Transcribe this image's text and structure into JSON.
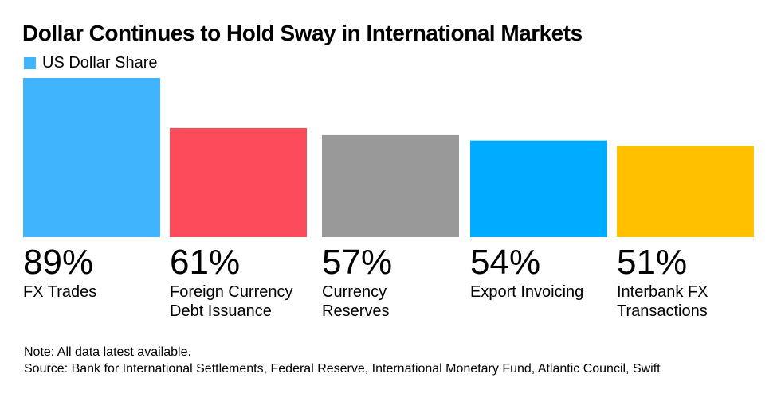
{
  "title": "Dollar Continues to Hold Sway in International Markets",
  "legend": {
    "label": "US Dollar Share",
    "color": "#40b4fc"
  },
  "chart_data": {
    "type": "bar",
    "categories": [
      "FX Trades",
      "Foreign Currency Debt Issuance",
      "Currency Reserves",
      "Export Invoicing",
      "Interbank FX Transactions"
    ],
    "category_lines": [
      [
        "FX Trades"
      ],
      [
        "Foreign Currency",
        "Debt Issuance"
      ],
      [
        "Currency",
        "Reserves"
      ],
      [
        "Export Invoicing"
      ],
      [
        "Interbank FX",
        "Transactions"
      ]
    ],
    "values": [
      89,
      61,
      57,
      54,
      51
    ],
    "value_labels": [
      "89%",
      "61%",
      "57%",
      "54%",
      "51%"
    ],
    "colors": [
      "#40b4fc",
      "#fc4c5c",
      "#999999",
      "#00acff",
      "#ffc000"
    ],
    "series": [
      {
        "name": "US Dollar Share",
        "values": [
          89,
          61,
          57,
          54,
          51
        ]
      }
    ],
    "title": "Dollar Continues to Hold Sway in International Markets",
    "xlabel": "",
    "ylabel": "",
    "ylim": [
      0,
      89
    ],
    "grid": false,
    "legend_position": "top-left"
  },
  "footer": {
    "note": "Note: All data latest available.",
    "source": "Source: Bank for International Settlements, Federal Reserve, International Monetary Fund, Atlantic Council, Swift"
  }
}
